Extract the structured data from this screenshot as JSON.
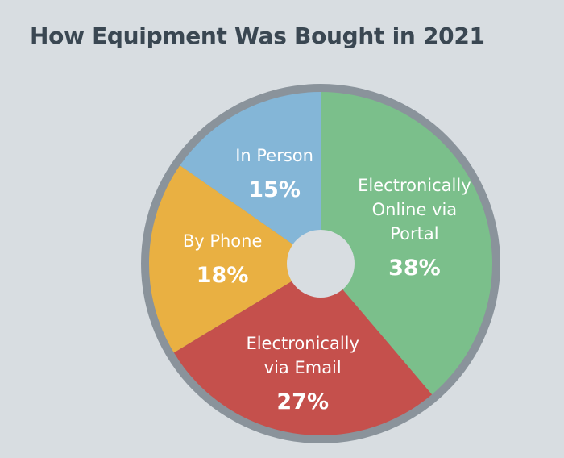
{
  "chart_data": {
    "type": "pie",
    "title": "How Equipment Was Bought in 2021",
    "slices": [
      {
        "label_lines": [
          "Electronically",
          "Online via",
          "Portal"
        ],
        "value": 38,
        "value_label": "38%",
        "color": "#7bbf8b"
      },
      {
        "label_lines": [
          "Electronically",
          "via Email"
        ],
        "value": 27,
        "value_label": "27%",
        "color": "#c5504c"
      },
      {
        "label_lines": [
          "By Phone"
        ],
        "value": 18,
        "value_label": "18%",
        "color": "#e9b042"
      },
      {
        "label_lines": [
          "In Person"
        ],
        "value": 15,
        "value_label": "15%",
        "color": "#84b6d7"
      }
    ],
    "ring_color": "#8a939b",
    "hole_color": "#d8dde1",
    "start": "top",
    "direction": "clockwise"
  }
}
